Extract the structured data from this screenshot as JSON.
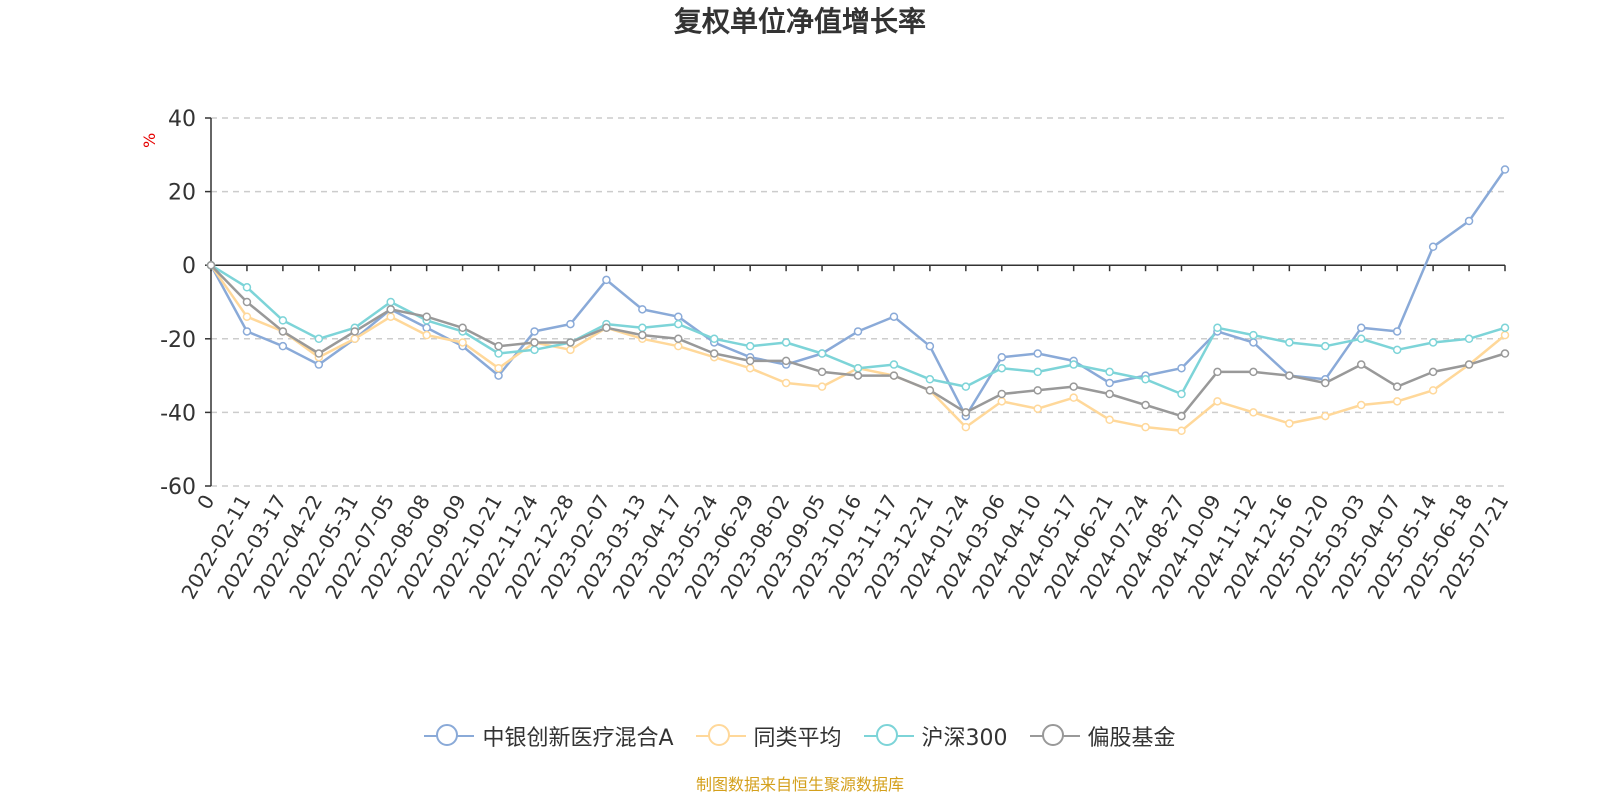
{
  "title": "复权单位净值增长率",
  "source": "制图数据来自恒生聚源数据库",
  "chart_data": {
    "type": "line",
    "title": "复权单位净值增长率",
    "ylabel": "%",
    "ylim": [
      -60,
      40
    ],
    "y_ticks": [
      40,
      20,
      0,
      -20,
      -40,
      -60
    ],
    "x_labels": [
      "0",
      "2022-02-11",
      "2022-03-17",
      "2022-04-22",
      "2022-05-31",
      "2022-07-05",
      "2022-08-08",
      "2022-09-09",
      "2022-10-21",
      "2022-11-24",
      "2022-12-28",
      "2023-02-07",
      "2023-03-13",
      "2023-04-17",
      "2023-05-24",
      "2023-06-29",
      "2023-08-02",
      "2023-09-05",
      "2023-10-16",
      "2023-11-17",
      "2023-12-21",
      "2024-01-24",
      "2024-03-06",
      "2024-04-10",
      "2024-05-17",
      "2024-06-21",
      "2024-07-24",
      "2024-08-27",
      "2024-10-09",
      "2024-11-12",
      "2024-12-16",
      "2025-01-20",
      "2025-03-03",
      "2025-04-07",
      "2025-05-14",
      "2025-06-18",
      "2025-07-21"
    ],
    "grid": true,
    "legend_position": "bottom",
    "series": [
      {
        "name": "中银创新医疗混合A",
        "color": "#8aaad8",
        "values": [
          0,
          -18,
          -22,
          -27,
          -20,
          -12,
          -17,
          -22,
          -30,
          -18,
          -16,
          -4,
          -12,
          -14,
          -21,
          -25,
          -27,
          -24,
          -18,
          -14,
          -22,
          -41,
          -25,
          -24,
          -26,
          -32,
          -30,
          -28,
          -18,
          -21,
          -30,
          -31,
          -17,
          -18,
          5,
          12,
          26
        ]
      },
      {
        "name": "同类平均",
        "color": "#ffd89a",
        "values": [
          0,
          -14,
          -18,
          -25,
          -20,
          -14,
          -19,
          -21,
          -28,
          -21,
          -23,
          -17,
          -20,
          -22,
          -25,
          -28,
          -32,
          -33,
          -28,
          -30,
          -34,
          -44,
          -37,
          -39,
          -36,
          -42,
          -44,
          -45,
          -37,
          -40,
          -43,
          -41,
          -38,
          -37,
          -34,
          -27,
          -19
        ]
      },
      {
        "name": "沪深300",
        "color": "#7dd4d8",
        "values": [
          0,
          -6,
          -15,
          -20,
          -17,
          -10,
          -15,
          -18,
          -24,
          -23,
          -21,
          -16,
          -17,
          -16,
          -20,
          -22,
          -21,
          -24,
          -28,
          -27,
          -31,
          -33,
          -28,
          -29,
          -27,
          -29,
          -31,
          -35,
          -17,
          -19,
          -21,
          -22,
          -20,
          -23,
          -21,
          -20,
          -17
        ]
      },
      {
        "name": "偏股基金",
        "color": "#999999",
        "values": [
          0,
          -10,
          -18,
          -24,
          -18,
          -12,
          -14,
          -17,
          -22,
          -21,
          -21,
          -17,
          -19,
          -20,
          -24,
          -26,
          -26,
          -29,
          -30,
          -30,
          -34,
          -40,
          -35,
          -34,
          -33,
          -35,
          -38,
          -41,
          -29,
          -29,
          -30,
          -32,
          -27,
          -33,
          -29,
          -27,
          -24
        ]
      }
    ]
  }
}
